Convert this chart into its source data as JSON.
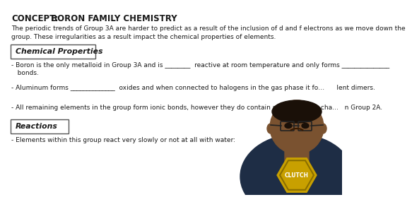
{
  "bg_color": "#ffffff",
  "title_bold": "CONCEPT:",
  "title_rest": " BORON FAMILY CHEMISTRY",
  "subtitle_line1": "The periodic trends of Group 3A are harder to predict as a result of the inclusion of d and f electrons as we move down the",
  "subtitle_line2": "group. These irregularities as a result impact the chemical properties of elements.",
  "box1_label": "Chemical Properties",
  "bullet1a": "- Boron is the only metalloid in Group 3A and is ________  reactive at room temperature and only forms _______________",
  "bullet1b": "   bonds.",
  "bullet2": "- Aluminum forms ______________  oxides and when connected to halogens in the gas phase it fo…      lent dimers.",
  "bullet3": "- All remaining elements in the group form ionic bonds, however they do contain more covalent cha…   n Group 2A.",
  "box2_label": "Reactions",
  "bullet4": "- Elements within this group react very slowly or not at all with water:",
  "text_color": "#1a1a1a",
  "box_border_color": "#555555",
  "font_size_title": 8.5,
  "font_size_body": 6.5,
  "font_size_box": 7.8,
  "person_shirt_color": "#1e2d45",
  "person_skin_color": "#7a5230",
  "person_logo_color": "#c8a000",
  "person_logo_outline": "#8a6e00"
}
